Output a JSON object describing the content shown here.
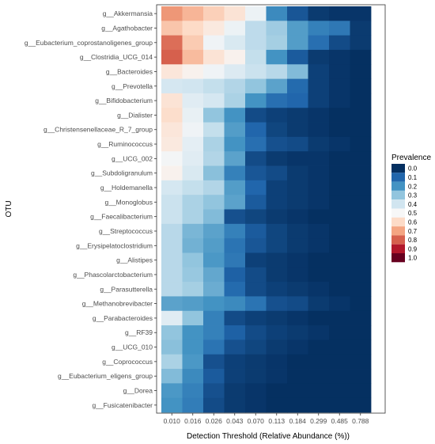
{
  "chart_data": {
    "type": "heatmap",
    "title": "",
    "xlabel": "Detection Threshold (Relative Abundance (%))",
    "ylabel": "OTU",
    "x": [
      "0.010",
      "0.016",
      "0.026",
      "0.043",
      "0.070",
      "0.113",
      "0.184",
      "0.299",
      "0.485",
      "0.788"
    ],
    "y": [
      "g__Akkermansia",
      "g__Agathobacter",
      "g__Eubacterium_coprostanoligenes_group",
      "g__Clostridia_UCG_014",
      "g__Bacteroides",
      "g__Prevotella",
      "g__Bifidobacterium",
      "g__Dialister",
      "g__Christensenellaceae_R_7_group",
      "g__Ruminococcus",
      "g__UCG_002",
      "g__Subdoligranulum",
      "g__Holdemanella",
      "g__Monoglobus",
      "g__Faecalibacterium",
      "g__Streptococcus",
      "g__Erysipelatoclostridium",
      "g__Alistipes",
      "g__Phascolarctobacterium",
      "g__Parasutterella",
      "g__Methanobrevibacter",
      "g__Parabacteroides",
      "g__RF39",
      "g__UCG_010",
      "g__Coprococcus",
      "g__Eubacterium_eligens_group",
      "g__Dorea",
      "g__Fusicatenibacter"
    ],
    "values": [
      [
        0.72,
        0.67,
        0.62,
        0.57,
        0.47,
        0.18,
        0.07,
        0.02,
        0.01,
        0.01
      ],
      [
        0.64,
        0.6,
        0.55,
        0.47,
        0.37,
        0.32,
        0.22,
        0.16,
        0.14,
        0.02
      ],
      [
        0.78,
        0.63,
        0.48,
        0.42,
        0.37,
        0.33,
        0.22,
        0.12,
        0.05,
        0.02
      ],
      [
        0.8,
        0.66,
        0.57,
        0.52,
        0.38,
        0.2,
        0.08,
        0.02,
        0.01,
        0.0
      ],
      [
        0.56,
        0.52,
        0.48,
        0.43,
        0.39,
        0.36,
        0.28,
        0.03,
        0.01,
        0.0
      ],
      [
        0.41,
        0.4,
        0.38,
        0.35,
        0.3,
        0.23,
        0.11,
        0.03,
        0.01,
        0.0
      ],
      [
        0.57,
        0.44,
        0.41,
        0.34,
        0.2,
        0.12,
        0.1,
        0.03,
        0.01,
        0.0
      ],
      [
        0.59,
        0.46,
        0.3,
        0.2,
        0.05,
        0.03,
        0.02,
        0.01,
        0.0,
        0.0
      ],
      [
        0.56,
        0.48,
        0.38,
        0.22,
        0.1,
        0.04,
        0.02,
        0.01,
        0.0,
        0.0
      ],
      [
        0.55,
        0.45,
        0.34,
        0.2,
        0.12,
        0.06,
        0.05,
        0.02,
        0.01,
        0.0
      ],
      [
        0.49,
        0.44,
        0.35,
        0.23,
        0.05,
        0.02,
        0.01,
        0.01,
        0.0,
        0.0
      ],
      [
        0.52,
        0.42,
        0.29,
        0.16,
        0.07,
        0.05,
        0.02,
        0.01,
        0.0,
        0.0
      ],
      [
        0.41,
        0.38,
        0.35,
        0.22,
        0.1,
        0.03,
        0.02,
        0.01,
        0.0,
        0.0
      ],
      [
        0.39,
        0.34,
        0.3,
        0.23,
        0.08,
        0.03,
        0.02,
        0.01,
        0.0,
        0.0
      ],
      [
        0.39,
        0.34,
        0.28,
        0.06,
        0.04,
        0.02,
        0.01,
        0.0,
        0.0,
        0.0
      ],
      [
        0.36,
        0.27,
        0.23,
        0.16,
        0.08,
        0.04,
        0.02,
        0.01,
        0.0,
        0.0
      ],
      [
        0.36,
        0.26,
        0.22,
        0.13,
        0.07,
        0.04,
        0.02,
        0.01,
        0.0,
        0.0
      ],
      [
        0.36,
        0.3,
        0.21,
        0.14,
        0.03,
        0.02,
        0.01,
        0.0,
        0.0,
        0.0
      ],
      [
        0.36,
        0.31,
        0.24,
        0.09,
        0.05,
        0.02,
        0.01,
        0.0,
        0.0,
        0.0
      ],
      [
        0.36,
        0.33,
        0.25,
        0.11,
        0.05,
        0.03,
        0.02,
        0.01,
        0.0,
        0.0
      ],
      [
        0.23,
        0.22,
        0.2,
        0.18,
        0.13,
        0.06,
        0.05,
        0.02,
        0.01,
        0.0
      ],
      [
        0.44,
        0.3,
        0.16,
        0.05,
        0.03,
        0.02,
        0.01,
        0.0,
        0.0,
        0.0
      ],
      [
        0.3,
        0.2,
        0.16,
        0.09,
        0.05,
        0.03,
        0.02,
        0.01,
        0.0,
        0.0
      ],
      [
        0.29,
        0.2,
        0.13,
        0.06,
        0.04,
        0.02,
        0.01,
        0.0,
        0.0,
        0.0
      ],
      [
        0.34,
        0.21,
        0.06,
        0.03,
        0.02,
        0.01,
        0.0,
        0.0,
        0.0,
        0.0
      ],
      [
        0.28,
        0.18,
        0.08,
        0.03,
        0.02,
        0.01,
        0.0,
        0.0,
        0.0,
        0.0
      ],
      [
        0.21,
        0.16,
        0.06,
        0.02,
        0.01,
        0.0,
        0.0,
        0.0,
        0.0,
        0.0
      ],
      [
        0.2,
        0.15,
        0.05,
        0.02,
        0.01,
        0.0,
        0.0,
        0.0,
        0.0,
        0.0
      ]
    ],
    "color_range": [
      0,
      1
    ],
    "legend": {
      "title": "Prevalence",
      "placement": "right",
      "breaks": [
        "0.0",
        "0.1",
        "0.2",
        "0.3",
        "0.4",
        "0.5",
        "0.6",
        "0.7",
        "0.8",
        "0.9",
        "1.0"
      ],
      "colors": [
        "#053061",
        "#2166ac",
        "#4393c3",
        "#92c5de",
        "#d1e5f0",
        "#f7f7f7",
        "#fddbc7",
        "#f4a582",
        "#d6604d",
        "#b2182b",
        "#67001f"
      ]
    },
    "grid": false
  }
}
